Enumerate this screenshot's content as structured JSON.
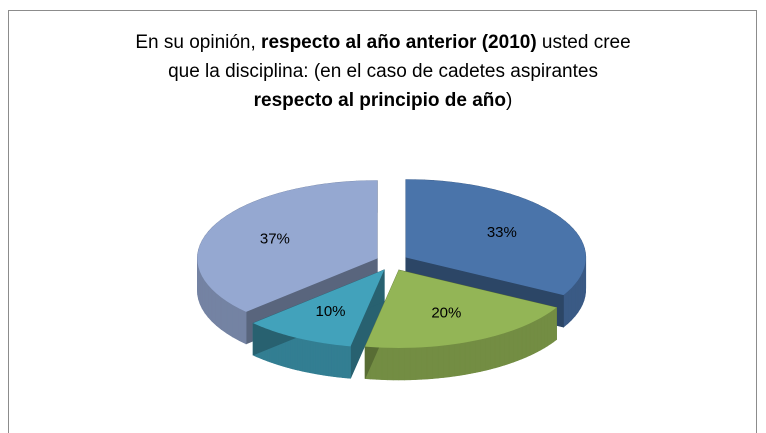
{
  "chart_data": {
    "type": "pie",
    "title_parts": [
      {
        "text": "En su opinión, ",
        "bold": false
      },
      {
        "text": "respecto al año anterior (2010)",
        "bold": true
      },
      {
        "text": " usted cree que la disciplina: (en el caso de cadetes aspirantes ",
        "bold": false
      },
      {
        "text": "respecto al principio de año",
        "bold": true
      },
      {
        "text": ")",
        "bold": false
      }
    ],
    "values": [
      33,
      20,
      10,
      37
    ],
    "value_labels": [
      "33%",
      "20%",
      "10%",
      "37%"
    ],
    "colors": [
      "#4a74aa",
      "#93b556",
      "#42a2bb",
      "#95a8d1"
    ]
  }
}
